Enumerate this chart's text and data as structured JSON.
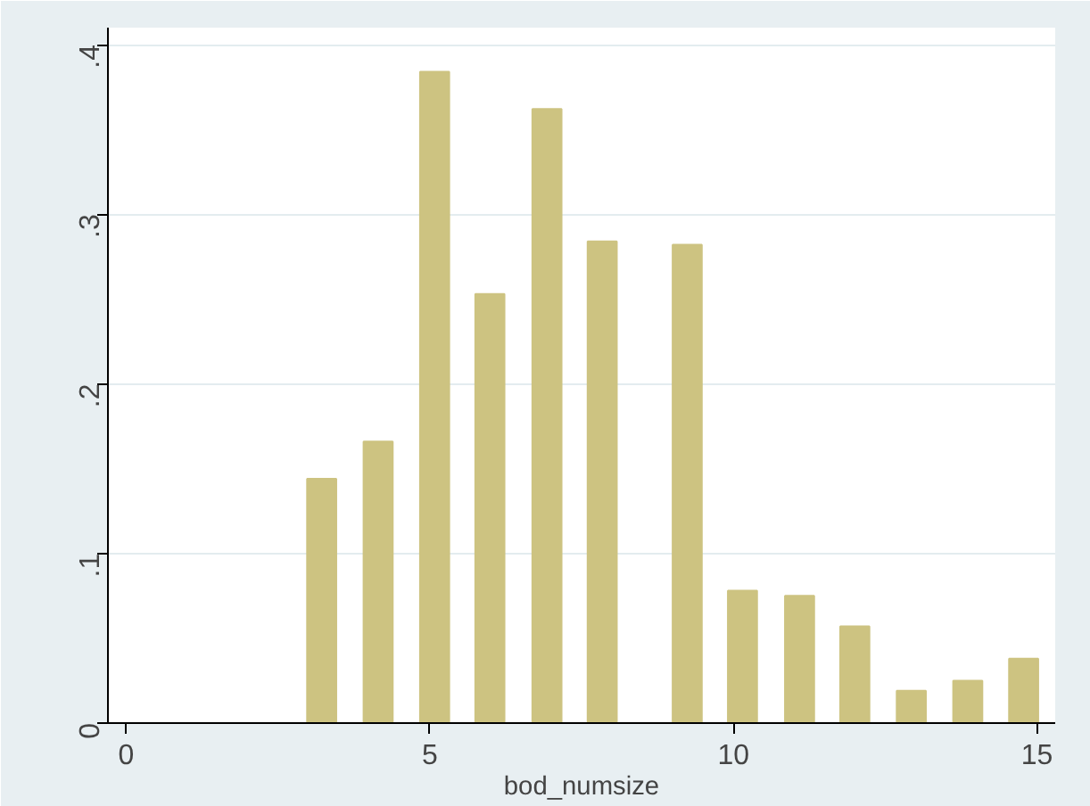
{
  "chart_data": {
    "type": "bar",
    "xlabel": "bod_numsize",
    "x": [
      3.22,
      4.15,
      5.08,
      5.99,
      6.93,
      7.84,
      9.24,
      10.15,
      11.09,
      12.0,
      12.93,
      13.86,
      14.78
    ],
    "values": [
      0.144,
      0.166,
      0.384,
      0.253,
      0.362,
      0.284,
      0.282,
      0.078,
      0.075,
      0.057,
      0.019,
      0.025,
      0.038
    ],
    "color": "#cdc381",
    "xlim": [
      -0.3,
      15.3
    ],
    "xticks": [
      0,
      5,
      10,
      15
    ],
    "ylim": [
      0,
      0.41
    ],
    "yticks": [
      {
        "value": 0,
        "label": "0"
      },
      {
        "value": 0.1,
        "label": ".1"
      },
      {
        "value": 0.2,
        "label": ".2"
      },
      {
        "value": 0.3,
        "label": ".3"
      },
      {
        "value": 0.4,
        "label": ".4"
      }
    ],
    "grid": "y"
  }
}
